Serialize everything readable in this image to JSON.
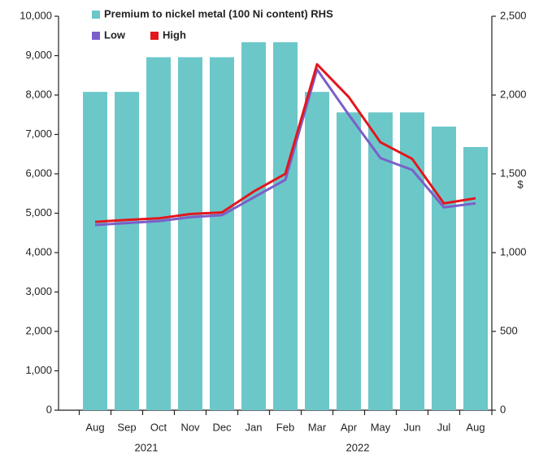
{
  "chart_data": {
    "type": "bar_line",
    "categories": [
      "Aug",
      "Sep",
      "Oct",
      "Nov",
      "Dec",
      "Jan",
      "Feb",
      "Mar",
      "Apr",
      "May",
      "Jun",
      "Jul",
      "Aug"
    ],
    "year_labels": [
      "2021",
      "2022"
    ],
    "y2_label": "$",
    "series": [
      {
        "name": "Premium to nickel metal (100 Ni content) RHS",
        "color": "#6cc7c9",
        "axis": "y2",
        "type": "bar",
        "values": [
          2020,
          2020,
          2240,
          2240,
          2240,
          2335,
          2335,
          2020,
          1890,
          1890,
          1890,
          1800,
          1670
        ]
      },
      {
        "name": "Low",
        "color": "#7b5fc9",
        "type": "line",
        "values": [
          4700,
          4750,
          4800,
          4900,
          4950,
          5400,
          5850,
          8650,
          7500,
          6400,
          6100,
          5150,
          5250
        ]
      },
      {
        "name": "High",
        "color": "#e3161d",
        "type": "line",
        "values": [
          4780,
          4830,
          4870,
          4980,
          5020,
          5550,
          6000,
          8780,
          7950,
          6800,
          6380,
          5250,
          5380
        ]
      }
    ],
    "ylim": [
      0,
      10000
    ],
    "yticks": [
      0,
      {
        "value": 1000,
        "label": "1,000"
      },
      {
        "value": 2000,
        "label": "2,000"
      },
      {
        "value": 3000,
        "label": "3,000"
      },
      {
        "value": 4000,
        "label": "4,000"
      },
      {
        "value": 5000,
        "label": "5,000"
      },
      {
        "value": 6000,
        "label": "6,000"
      },
      {
        "value": 7000,
        "label": "7,000"
      },
      {
        "value": 8000,
        "label": "8,000"
      },
      {
        "value": 9000,
        "label": "9,000"
      },
      {
        "value": 10000,
        "label": "10,000"
      }
    ],
    "y2lim": [
      0,
      2500
    ],
    "y2ticks": [
      0,
      500,
      {
        "value": 1000,
        "label": "1,000"
      },
      {
        "value": 1500,
        "label": "1,500"
      },
      {
        "value": 2000,
        "label": "2,000"
      },
      {
        "value": 2500,
        "label": "2,500"
      }
    ]
  }
}
